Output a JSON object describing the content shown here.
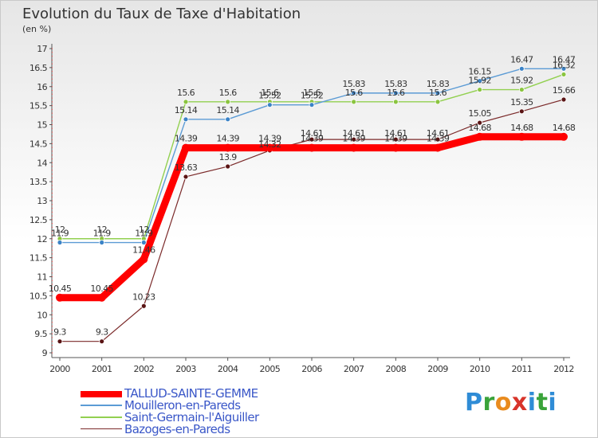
{
  "title": "Evolution du Taux de Taxe d'Habitation",
  "unit": "(en %)",
  "logo": [
    "P",
    "r",
    "o",
    "x",
    "i",
    "t",
    "i"
  ],
  "chart_data": {
    "type": "line",
    "x": [
      "2000",
      "2001",
      "2002",
      "2003",
      "2004",
      "2005",
      "2006",
      "2007",
      "2008",
      "2009",
      "2010",
      "2011",
      "2012"
    ],
    "ylim": [
      9,
      17
    ],
    "yticks": [
      "9",
      "9.5",
      "10",
      "10.5",
      "11",
      "11.5",
      "12",
      "12.5",
      "13",
      "13.5",
      "14",
      "14.5",
      "15",
      "15.5",
      "16",
      "16.5",
      "17"
    ],
    "grid": false,
    "legend_position": "bottom-left",
    "series": [
      {
        "name": "TALLUD-SAINTE-GEMME",
        "color": "#ff0000",
        "values": [
          10.45,
          10.45,
          11.46,
          14.39,
          14.39,
          14.39,
          14.39,
          14.39,
          14.39,
          14.39,
          14.68,
          14.68,
          14.68
        ],
        "labels": [
          "10.45",
          "10.45",
          "11.46",
          "14.39",
          "14.39",
          "14.39",
          "14.39",
          "14.39",
          "14.39",
          "14.39",
          "14.68",
          "14.68",
          "14.68"
        ]
      },
      {
        "name": "Mouilleron-en-Pareds",
        "color": "#5b9bd5",
        "values": [
          11.9,
          11.9,
          11.9,
          15.14,
          15.14,
          15.52,
          15.52,
          15.83,
          15.83,
          15.83,
          16.15,
          16.47,
          16.47
        ],
        "labels": [
          "11.9",
          "11.9",
          "11.9",
          "15.14",
          "15.14",
          "15.52",
          "15.52",
          "15.83",
          "15.83",
          "15.83",
          "16.15",
          "16.47",
          "16.47"
        ]
      },
      {
        "name": "Saint-Germain-l'Aiguiller",
        "color": "#92d050",
        "values": [
          12,
          12,
          12,
          15.6,
          15.6,
          15.6,
          15.6,
          15.6,
          15.6,
          15.6,
          15.92,
          15.92,
          16.32
        ],
        "labels": [
          "12",
          "12",
          "12",
          "15.6",
          "15.6",
          "15.6",
          "15.6",
          "15.6",
          "15.6",
          "15.6",
          "15.92",
          "15.92",
          "16.32"
        ]
      },
      {
        "name": "Bazoges-en-Pareds",
        "color": "#7b2a2a",
        "values": [
          9.3,
          9.3,
          10.23,
          13.63,
          13.9,
          14.32,
          14.61,
          14.61,
          14.61,
          14.61,
          15.05,
          15.35,
          15.66
        ],
        "labels": [
          "9.3",
          "9.3",
          "10.23",
          "13.63",
          "13.9",
          "14.32",
          "14.61",
          "14.61",
          "14.61",
          "14.61",
          "15.05",
          "15.35",
          "15.66"
        ]
      }
    ]
  }
}
